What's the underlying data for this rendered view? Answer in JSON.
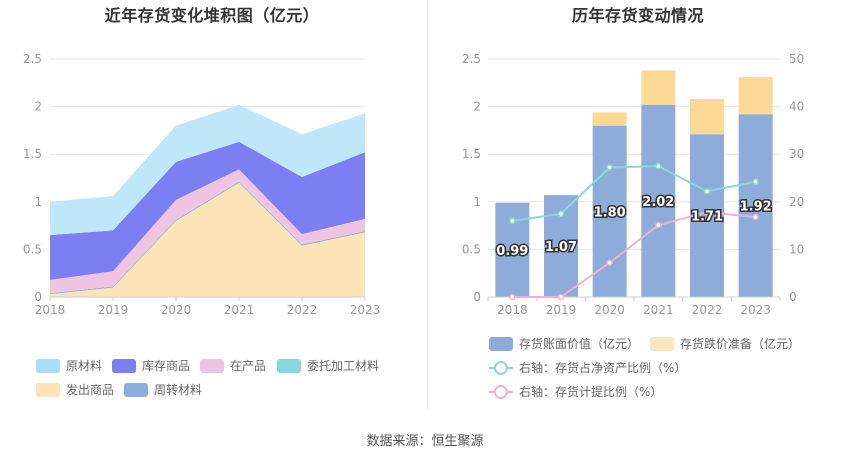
{
  "left_chart_title": "近年存货变化堆积图（亿元）",
  "right_chart_title": "历年存货变动情况",
  "source_text": "数据来源：恒生聚源",
  "chart_data": [
    {
      "type": "area",
      "stacked": true,
      "title": "近年存货变化堆积图（亿元）",
      "categories": [
        "2018",
        "2019",
        "2020",
        "2021",
        "2022",
        "2023"
      ],
      "y_ticks": [
        "0",
        "0.5",
        "1",
        "1.5",
        "2",
        "2.5"
      ],
      "ylim": [
        0,
        2.5
      ],
      "series": [
        {
          "name": "发出商品",
          "color": "#fde3b5",
          "values": [
            0.03,
            0.1,
            0.8,
            1.2,
            0.54,
            0.68
          ]
        },
        {
          "name": "周转材料",
          "color": "#8eacd9",
          "values": [
            0.01,
            0.01,
            0.01,
            0.01,
            0.01,
            0.01
          ]
        },
        {
          "name": "委托加工材料",
          "color": "#8ad7da",
          "values": [
            0.0,
            0.0,
            0.0,
            0.0,
            0.0,
            0.0
          ]
        },
        {
          "name": "在产品",
          "color": "#efc4e2",
          "values": [
            0.14,
            0.16,
            0.21,
            0.13,
            0.11,
            0.13
          ]
        },
        {
          "name": "库存商品",
          "color": "#7b7ff2",
          "values": [
            0.47,
            0.43,
            0.4,
            0.29,
            0.6,
            0.7
          ]
        },
        {
          "name": "原材料",
          "color": "#bfe6f9",
          "values": [
            0.35,
            0.36,
            0.38,
            0.39,
            0.45,
            0.41
          ]
        }
      ],
      "legend": [
        {
          "name": "原材料",
          "color": "#a8def9"
        },
        {
          "name": "库存商品",
          "color": "#7b7ff2"
        },
        {
          "name": "在产品",
          "color": "#efc4e2"
        },
        {
          "name": "委托加工材料",
          "color": "#8ad7da"
        },
        {
          "name": "发出商品",
          "color": "#fde3b5"
        },
        {
          "name": "周转材料",
          "color": "#8eacd9"
        }
      ]
    },
    {
      "type": "bar",
      "stacked": true,
      "title": "历年存货变动情况",
      "categories": [
        "2018",
        "2019",
        "2020",
        "2021",
        "2022",
        "2023"
      ],
      "y_ticks": [
        "0",
        "0.5",
        "1",
        "1.5",
        "2",
        "2.5"
      ],
      "ylim": [
        0,
        2.5
      ],
      "y2_ticks": [
        "0",
        "10",
        "20",
        "30",
        "40",
        "50"
      ],
      "y2lim": [
        0,
        50
      ],
      "series": [
        {
          "name": "存货账面价值（亿元）",
          "color": "#8eacd9",
          "values": [
            0.99,
            1.07,
            1.8,
            2.02,
            1.71,
            1.92
          ],
          "labels": [
            "0.99",
            "1.07",
            "1.80",
            "2.02",
            "1.71",
            "1.92"
          ]
        },
        {
          "name": "存货跌价准备（亿元）",
          "color": "#fdd996",
          "values": [
            0.0,
            0.0,
            0.14,
            0.36,
            0.37,
            0.39
          ]
        }
      ],
      "lines": [
        {
          "name": "右轴：存货占净资产比例（%）",
          "color": "#8dd6d9",
          "values": [
            16.0,
            17.5,
            27.2,
            27.5,
            22.2,
            24.2
          ]
        },
        {
          "name": "右轴：存货计提比例（%）",
          "color": "#eab1d8",
          "values": [
            0.0,
            0.0,
            7.2,
            15.1,
            17.8,
            16.8
          ]
        }
      ],
      "legend": [
        {
          "name": "存货账面价值（亿元）",
          "color": "#8eacd9",
          "kind": "box"
        },
        {
          "name": "存货跌价准备（亿元）",
          "color": "#fde6c0",
          "kind": "box"
        },
        {
          "name": "右轴：存货占净资产比例（%）",
          "color": "#8dd6d9",
          "kind": "line"
        },
        {
          "name": "右轴：存货计提比例（%）",
          "color": "#eab1d8",
          "kind": "line"
        }
      ]
    }
  ]
}
